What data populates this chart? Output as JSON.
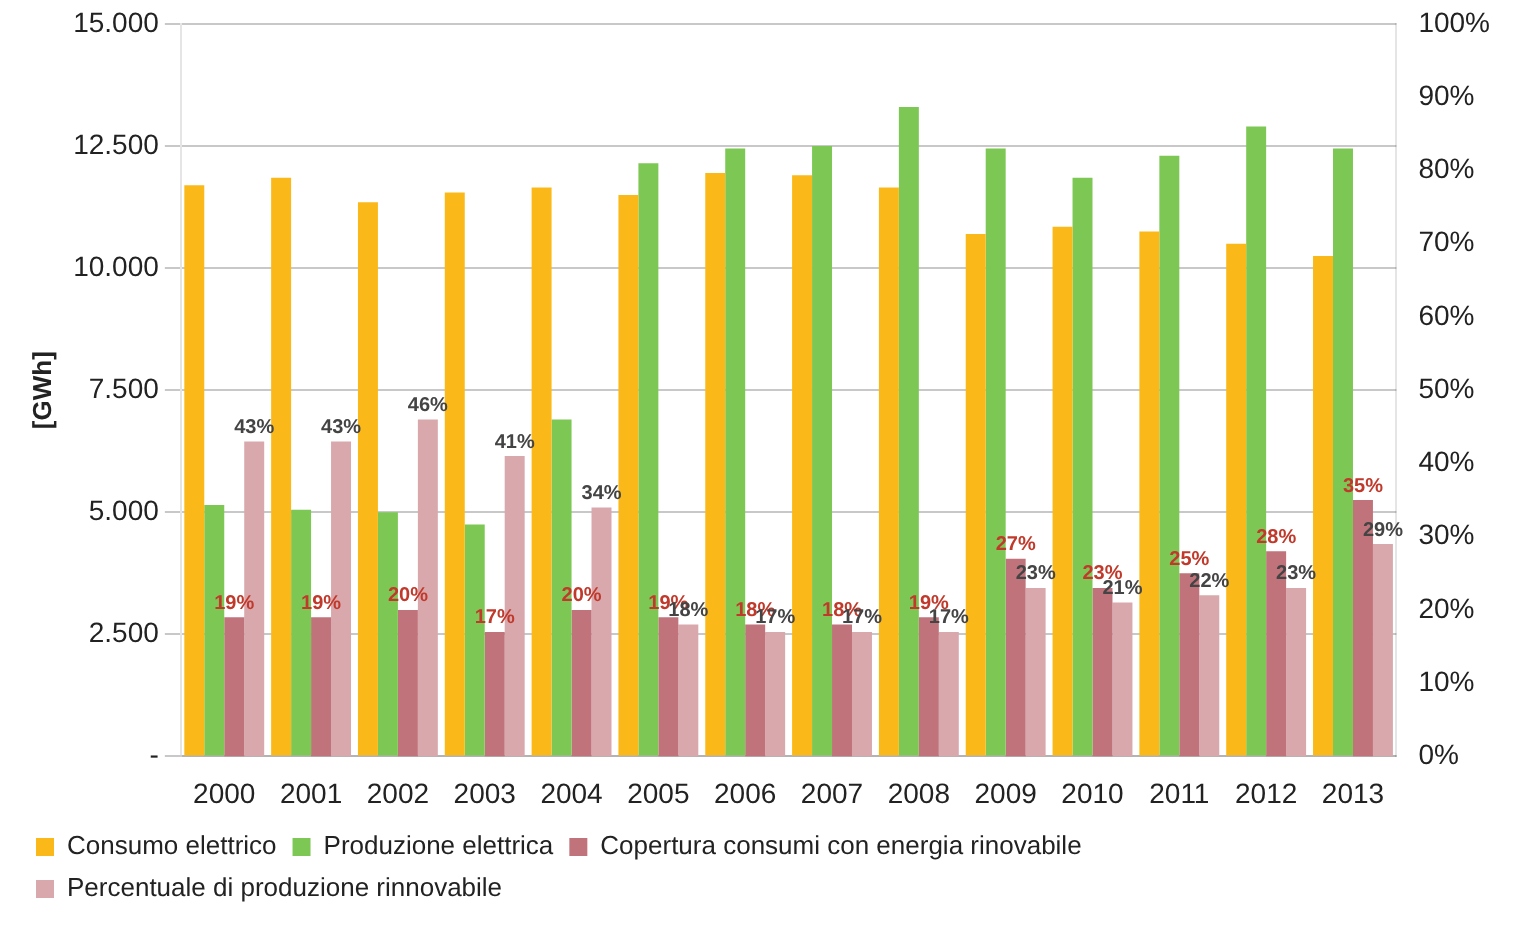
{
  "chart_data": {
    "type": "bar",
    "ylabel": "[GWh]",
    "categories": [
      "2000",
      "2001",
      "2002",
      "2003",
      "2004",
      "2005",
      "2006",
      "2007",
      "2008",
      "2009",
      "2010",
      "2011",
      "2012",
      "2013"
    ],
    "series": [
      {
        "name": "Consumo elettrico",
        "color": "#fbb919",
        "values": [
          11700,
          11850,
          11350,
          11550,
          11650,
          11500,
          11950,
          11900,
          11650,
          10700,
          10850,
          10750,
          10500,
          10250
        ]
      },
      {
        "name": "Produzione elettrica",
        "color": "#7dc855",
        "values": [
          5150,
          5050,
          5000,
          4750,
          6900,
          12150,
          12450,
          12500,
          13300,
          12450,
          11850,
          12300,
          12900,
          12450
        ]
      },
      {
        "name": "Copertura consumi con energia rinovabile",
        "color": "#c0737a",
        "axis": "y2",
        "values": [
          19,
          19,
          20,
          17,
          20,
          19,
          18,
          18,
          19,
          27,
          23,
          25,
          28,
          35
        ],
        "value_labels": [
          "19%",
          "19%",
          "20%",
          "17%",
          "20%",
          "19%",
          "18%",
          "18%",
          "19%",
          "27%",
          "23%",
          "25%",
          "28%",
          "35%"
        ]
      },
      {
        "name": "Percentuale di produzione rinnovabile",
        "color": "#d9a8ac",
        "axis": "y2",
        "values": [
          43,
          43,
          46,
          41,
          34,
          18,
          17,
          17,
          17,
          23,
          21,
          22,
          23,
          29
        ],
        "value_labels": [
          "43%",
          "43%",
          "46%",
          "41%",
          "34%",
          "18%",
          "17%",
          "17%",
          "17%",
          "23%",
          "21%",
          "22%",
          "23%",
          "29%"
        ]
      }
    ],
    "ylim": [
      0,
      15000
    ],
    "yticks": [
      {
        "value": 0,
        "label": "-"
      },
      {
        "value": 2500,
        "label": "2.500"
      },
      {
        "value": 5000,
        "label": "5.000"
      },
      {
        "value": 7500,
        "label": "7.500"
      },
      {
        "value": 10000,
        "label": "10.000"
      },
      {
        "value": 12500,
        "label": "12.500"
      },
      {
        "value": 15000,
        "label": "15.000"
      }
    ],
    "y2lim": [
      0,
      100
    ],
    "y2ticks": [
      {
        "value": 0,
        "label": "0%"
      },
      {
        "value": 10,
        "label": "10%"
      },
      {
        "value": 20,
        "label": "20%"
      },
      {
        "value": 30,
        "label": "30%"
      },
      {
        "value": 40,
        "label": "40%"
      },
      {
        "value": 50,
        "label": "50%"
      },
      {
        "value": 60,
        "label": "60%"
      },
      {
        "value": 70,
        "label": "70%"
      },
      {
        "value": 80,
        "label": "80%"
      },
      {
        "value": 90,
        "label": "90%"
      },
      {
        "value": 100,
        "label": "100%"
      }
    ],
    "grid": "y",
    "legend": "bottom"
  }
}
